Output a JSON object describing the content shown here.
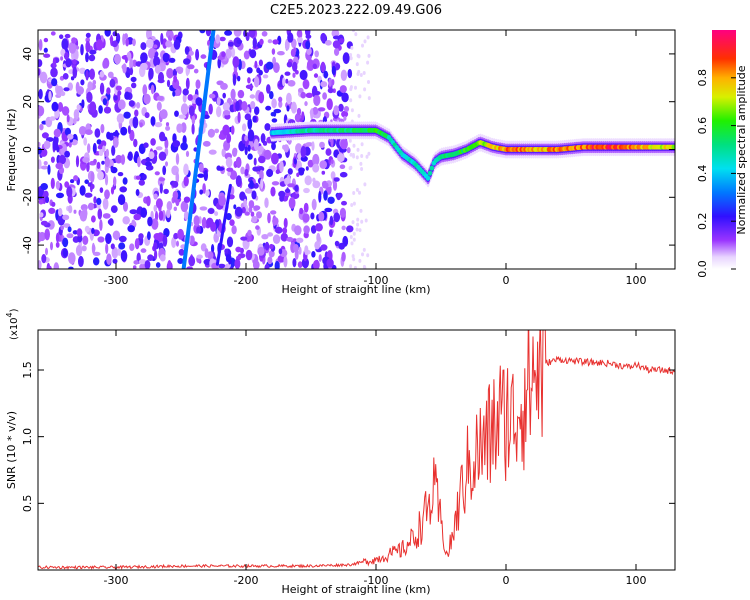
{
  "title": "C2E5.2023.222.09.49.G06",
  "chart_data": [
    {
      "type": "heatmap",
      "xlabel": "Height of straight line (km)",
      "ylabel": "Frequency (Hz)",
      "xlim": [
        -360,
        130
      ],
      "ylim": [
        -50,
        50
      ],
      "xticks": [
        -300,
        -200,
        -100,
        0,
        100
      ],
      "yticks": [
        -40,
        -20,
        0,
        20,
        40
      ],
      "colorbar": {
        "label": "Normalized spectral amplitude",
        "range": [
          0,
          1
        ],
        "ticks": [
          "0.0",
          "0.2",
          "0.4",
          "0.6",
          "0.8"
        ],
        "colormap": "rainbow (white, violet, blue, cyan, green, yellow, orange, red, magenta)"
      },
      "features": {
        "noise_region_x": [
          -360,
          -120
        ],
        "diagonal_streak_1": {
          "x": [
            -248,
            -225
          ],
          "y": [
            -50,
            50
          ]
        },
        "diagonal_streak_2": {
          "x": [
            -222,
            -212
          ],
          "y": [
            -48,
            -15
          ]
        },
        "signal_trace": {
          "x": [
            -180,
            -150,
            -130,
            -110,
            -100,
            -90,
            -80,
            -70,
            -60,
            -55,
            -50,
            -40,
            -30,
            -20,
            -10,
            0,
            20,
            40,
            60,
            80,
            100,
            130
          ],
          "y": [
            7,
            8,
            8,
            8,
            8,
            5,
            -2,
            -6,
            -12,
            -5,
            -3,
            -2,
            0,
            3,
            1,
            0,
            0,
            0,
            1,
            1,
            1,
            1
          ],
          "amplitude": [
            0.4,
            0.5,
            0.5,
            0.55,
            0.6,
            0.5,
            0.45,
            0.45,
            0.45,
            0.45,
            0.5,
            0.55,
            0.6,
            0.65,
            0.75,
            0.85,
            0.8,
            0.8,
            0.85,
            0.9,
            0.8,
            0.7
          ]
        }
      }
    },
    {
      "type": "line",
      "xlabel": "Height of straight line (km)",
      "ylabel": "SNR (10 * v/v)",
      "y_scale_label": "(x10",
      "y_scale_exp": "4",
      "y_scale_close": ")",
      "xlim": [
        -360,
        130
      ],
      "ylim": [
        0,
        1.8
      ],
      "xticks": [
        -300,
        -200,
        -100,
        0,
        100
      ],
      "yticks": [
        "0.5",
        "1.0",
        "1.5"
      ],
      "series": [
        {
          "color": "#e8312f",
          "x": [
            -360,
            -300,
            -250,
            -200,
            -150,
            -120,
            -100,
            -80,
            -70,
            -60,
            -55,
            -50,
            -45,
            -40,
            -35,
            -30,
            -25,
            -20,
            -15,
            -10,
            -5,
            -2,
            0,
            5,
            10,
            15,
            20,
            30,
            40,
            60,
            80,
            95,
            100,
            105,
            110,
            120,
            130
          ],
          "y": [
            0.02,
            0.02,
            0.03,
            0.03,
            0.03,
            0.04,
            0.08,
            0.15,
            0.25,
            0.45,
            0.6,
            0.35,
            0.1,
            0.3,
            0.55,
            0.75,
            0.85,
            0.9,
            0.95,
            1.05,
            1.15,
            1.1,
            1.2,
            1.1,
            1.25,
            1.35,
            1.45,
            1.55,
            1.58,
            1.56,
            1.55,
            1.52,
            1.54,
            1.52,
            1.5,
            1.5,
            1.49
          ]
        }
      ]
    }
  ]
}
